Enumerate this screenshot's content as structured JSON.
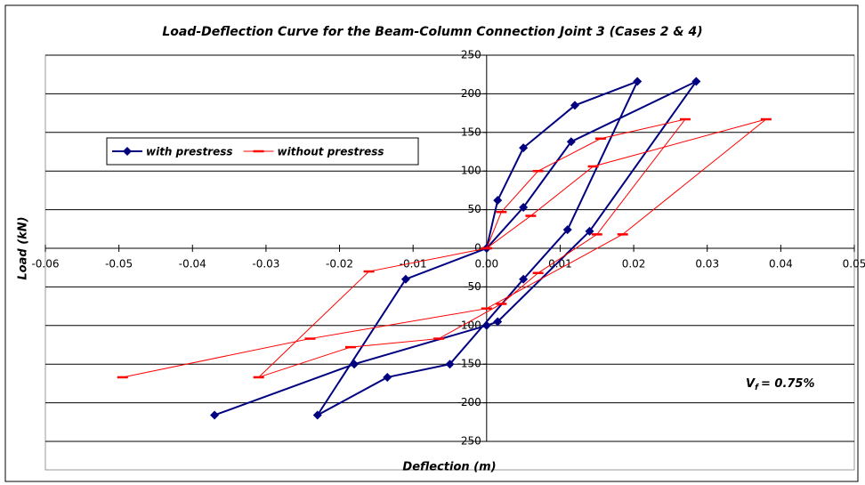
{
  "chart_data": {
    "type": "line",
    "title": "Load-Deflection Curve for the Beam-Column Connection Joint 3 (Cases 2 & 4)",
    "x_label": "Deflection (m)",
    "y_label": "Load (kN)",
    "annotation": {
      "main": "V",
      "sub": "f",
      "rest": "= 0.75%"
    },
    "xlim": [
      -0.06,
      0.05
    ],
    "xticks": [
      -0.06,
      -0.05,
      -0.04,
      -0.03,
      -0.02,
      -0.01,
      {
        "value": 0,
        "label": "0.00"
      },
      0.01,
      0.02,
      0.03,
      0.04,
      0.05
    ],
    "ylim": [
      -250,
      250
    ],
    "yticks": [
      -250,
      -200,
      -150,
      -100,
      -50,
      0,
      50,
      100,
      150,
      200,
      250
    ],
    "grid": true,
    "legend": "upper left",
    "series": [
      {
        "name": "with prestress",
        "color": "#000080",
        "marker": "diamond",
        "x": [
          0,
          0.0015,
          0.005,
          0.012,
          0.0205,
          0.011,
          0.005,
          -0.005,
          -0.0135,
          -0.023,
          -0.011,
          0,
          0.005,
          0.0115,
          0.0285,
          0.014,
          0.0015,
          0,
          -0.018,
          -0.037
        ],
        "values": [
          0,
          62,
          130,
          185,
          216,
          24,
          -40,
          -150,
          -167,
          -216,
          -40,
          0,
          53,
          138,
          216,
          22,
          -95,
          -100,
          -150,
          -216
        ]
      },
      {
        "name": "without prestress",
        "color": "#ff0000",
        "marker": "dash",
        "x": [
          0,
          0.002,
          0.007,
          0.0155,
          0.027,
          0.015,
          0.007,
          0.002,
          -0.0065,
          -0.0185,
          -0.031,
          -0.016,
          0,
          0.006,
          0.0145,
          0.038,
          0.0185,
          0,
          -0.024,
          -0.0495
        ],
        "values": [
          0,
          47,
          100,
          142,
          167,
          18,
          -32,
          -72,
          -117,
          -128,
          -167,
          -30,
          0,
          42,
          106,
          167,
          18,
          -78,
          -117,
          -167
        ]
      }
    ]
  }
}
